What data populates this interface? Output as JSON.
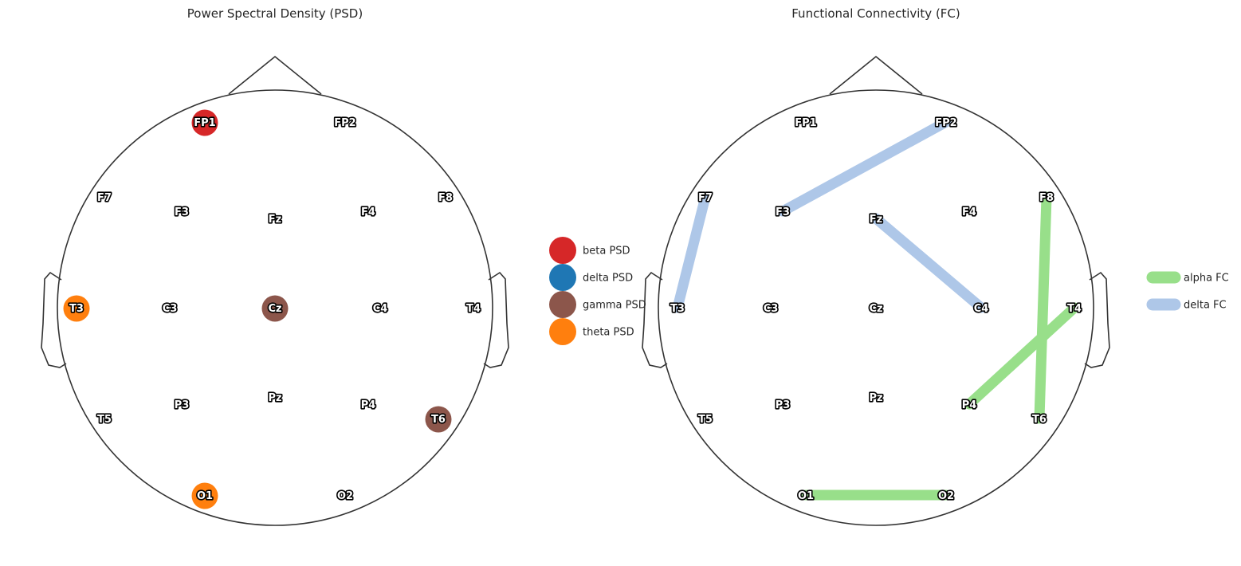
{
  "panels": [
    {
      "id": "psd",
      "title": "Power Spectral Density (PSD)",
      "highlighted": [
        {
          "electrode": "FP1",
          "band": "beta"
        },
        {
          "electrode": "T3",
          "band": "theta"
        },
        {
          "electrode": "Cz",
          "band": "gamma"
        },
        {
          "electrode": "T6",
          "band": "gamma"
        },
        {
          "electrode": "O1",
          "band": "theta"
        }
      ],
      "legend": [
        {
          "label": "beta PSD",
          "color": "#d62728",
          "kind": "circle"
        },
        {
          "label": "delta PSD",
          "color": "#1f77b4",
          "kind": "circle"
        },
        {
          "label": "gamma PSD",
          "color": "#8c564b",
          "kind": "circle"
        },
        {
          "label": "theta PSD",
          "color": "#ff7f0e",
          "kind": "circle"
        }
      ]
    },
    {
      "id": "fc",
      "title": "Functional Connectivity (FC)",
      "connections": [
        {
          "from": "FP2",
          "to": "F3",
          "band": "delta"
        },
        {
          "from": "F7",
          "to": "T3",
          "band": "delta"
        },
        {
          "from": "Fz",
          "to": "C4",
          "band": "delta"
        },
        {
          "from": "F8",
          "to": "T6",
          "band": "alpha"
        },
        {
          "from": "T4",
          "to": "P4",
          "band": "alpha"
        },
        {
          "from": "O1",
          "to": "O2",
          "band": "alpha"
        }
      ],
      "legend": [
        {
          "label": "alpha FC",
          "color": "#98df8a",
          "kind": "line"
        },
        {
          "label": "delta FC",
          "color": "#aec7e8",
          "kind": "line"
        }
      ]
    }
  ],
  "electrodes": [
    "FP1",
    "FP2",
    "F7",
    "F3",
    "Fz",
    "F4",
    "F8",
    "T3",
    "C3",
    "Cz",
    "C4",
    "T4",
    "T5",
    "P3",
    "Pz",
    "P4",
    "T6",
    "O1",
    "O2"
  ],
  "band_colors": {
    "beta": "#d62728",
    "delta_psd": "#1f77b4",
    "gamma": "#8c564b",
    "theta": "#ff7f0e",
    "alpha_fc": "#98df8a",
    "delta_fc": "#aec7e8"
  }
}
